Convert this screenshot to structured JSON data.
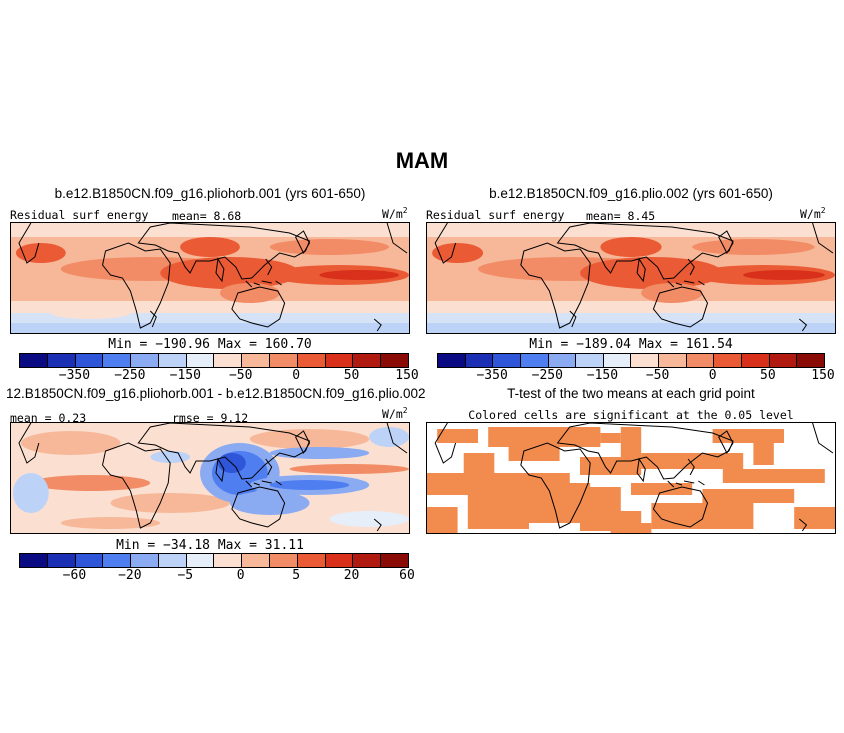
{
  "title": "MAM",
  "panels": [
    {
      "title": "b.e12.B1850CN.f09_g16.pliohorb.001 (yrs 601-650)",
      "left_label": "Residual surf energy",
      "center_label": "mean=   8.68",
      "unit": "W/m",
      "minmax": "Min = −190.96  Max = 160.70"
    },
    {
      "title": "b.e12.B1850CN.f09_g16.plio.002 (yrs 601-650)",
      "left_label": "Residual surf energy",
      "center_label": "mean=   8.45",
      "unit": "W/m",
      "minmax": "Min = −189.04  Max = 161.54"
    },
    {
      "title": "12.B1850CN.f09_g16.pliohorb.001 - b.e12.B1850CN.f09_g16.plio.002",
      "left_label": "mean =   0.23",
      "center_label": "rmse =   9.12",
      "unit": "W/m",
      "minmax": "Min = −34.18  Max =  31.11"
    },
    {
      "title": "T-test of the two means at each grid point",
      "subtitle": "Colored cells are significant at the 0.05 level"
    }
  ],
  "colorbar_abs": {
    "colors": [
      "#0a0a82",
      "#1a2fb4",
      "#2f56d8",
      "#4f7ef0",
      "#8aaaf2",
      "#bcd2f7",
      "#e6eefa",
      "#fbe0d2",
      "#f7b89a",
      "#f28c66",
      "#ea5a34",
      "#d8301a",
      "#b01a10",
      "#8a0a06"
    ],
    "ticks": [
      "−350",
      "−250",
      "−150",
      "−50",
      "0",
      "50",
      "150"
    ]
  },
  "colorbar_diff": {
    "colors": [
      "#0a0a82",
      "#1a2fb4",
      "#2f56d8",
      "#4f7ef0",
      "#8aaaf2",
      "#bcd2f7",
      "#e6eefa",
      "#fbe0d2",
      "#f7b89a",
      "#f28c66",
      "#ea5a34",
      "#d8301a",
      "#b01a10",
      "#8a0a06"
    ],
    "ticks": [
      "−60",
      "−20",
      "−5",
      "0",
      "5",
      "20",
      "60"
    ]
  }
}
